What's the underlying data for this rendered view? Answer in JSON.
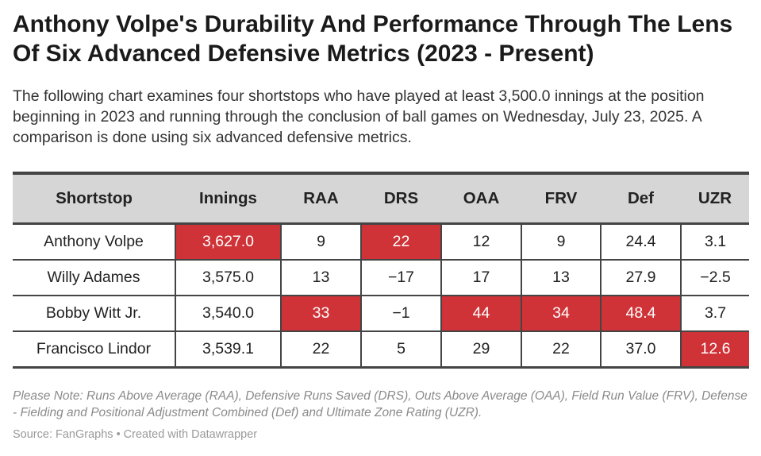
{
  "title": "Anthony Volpe's Durability And Performance Through The Lens Of Six Advanced Defensive Metrics (2023 - Present)",
  "subtitle": "The following chart examines four shortstops who have played at least 3,500.0 innings at the position beginning in 2023 and running through the conclusion of ball games on Wednesday, July 23, 2025. A comparison is done using six advanced defensive metrics.",
  "note": "Please Note: Runs Above Average (RAA), Defensive Runs Saved (DRS), Outs Above Average (OAA), Field Run Value (FRV), Defense - Fielding and Positional Adjustment Combined (Def) and Ultimate Zone Rating (UZR).",
  "source": "Source: FanGraphs • Created with Datawrapper",
  "highlight_color": "#cf3237",
  "chart_data": {
    "type": "table",
    "columns": [
      "Shortstop",
      "Innings",
      "RAA",
      "DRS",
      "OAA",
      "FRV",
      "Def",
      "UZR"
    ],
    "rows": [
      {
        "cells": [
          "Anthony Volpe",
          "3,627.0",
          "9",
          "22",
          "12",
          "9",
          "24.4",
          "3.1"
        ],
        "highlight": [
          false,
          true,
          false,
          true,
          false,
          false,
          false,
          false
        ]
      },
      {
        "cells": [
          "Willy Adames",
          "3,575.0",
          "13",
          "−17",
          "17",
          "13",
          "27.9",
          "−2.5"
        ],
        "highlight": [
          false,
          false,
          false,
          false,
          false,
          false,
          false,
          false
        ]
      },
      {
        "cells": [
          "Bobby Witt Jr.",
          "3,540.0",
          "33",
          "−1",
          "44",
          "34",
          "48.4",
          "3.7"
        ],
        "highlight": [
          false,
          false,
          true,
          false,
          true,
          true,
          true,
          false
        ]
      },
      {
        "cells": [
          "Francisco Lindor",
          "3,539.1",
          "22",
          "5",
          "29",
          "22",
          "37.0",
          "12.6"
        ],
        "highlight": [
          false,
          false,
          false,
          false,
          false,
          false,
          false,
          true
        ]
      }
    ]
  }
}
